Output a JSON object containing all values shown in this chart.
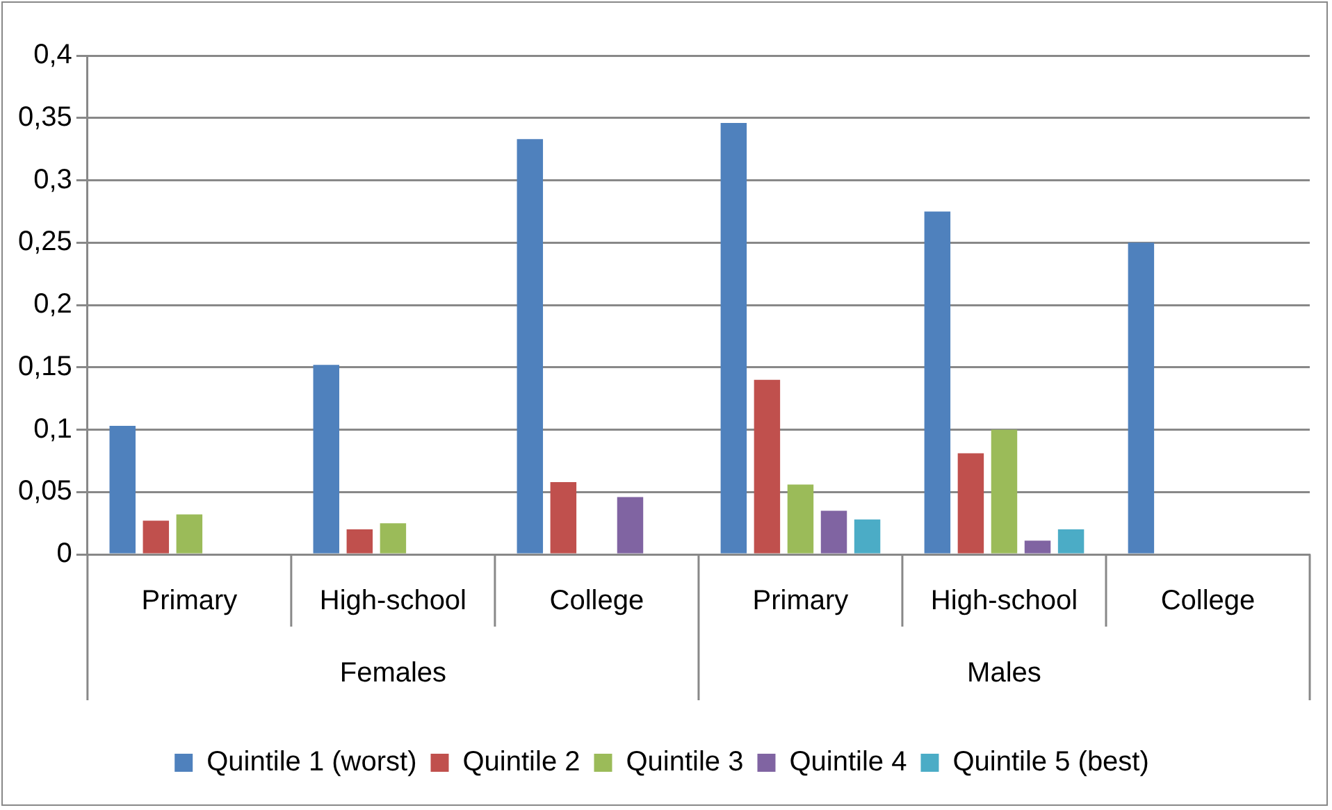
{
  "chart_data": {
    "type": "bar",
    "categories": [
      "Primary",
      "High-school",
      "College",
      "Primary",
      "High-school",
      "College"
    ],
    "series": [
      {
        "name": "Quintile 1 (worst)",
        "color": "#4f81bd",
        "values": [
          0.103,
          0.152,
          0.333,
          0.346,
          0.275,
          0.25
        ]
      },
      {
        "name": "Quintile 2",
        "color": "#c0504d",
        "values": [
          0.027,
          0.02,
          0.058,
          0.14,
          0.081,
          0
        ]
      },
      {
        "name": "Quintile 3",
        "color": "#9bbb59",
        "values": [
          0.032,
          0.025,
          0,
          0.056,
          0.1,
          0
        ]
      },
      {
        "name": "Quintile 4",
        "color": "#8064a2",
        "values": [
          0,
          0,
          0.046,
          0.035,
          0.011,
          0
        ]
      },
      {
        "name": "Quintile 5 (best)",
        "color": "#4bacc6",
        "values": [
          0,
          0,
          0,
          0.028,
          0.02,
          0
        ]
      }
    ],
    "annotations": [
      "Females",
      "Males"
    ],
    "ylim": [
      0,
      0.4
    ],
    "yticks": [
      {
        "value": 0,
        "label": "0"
      },
      {
        "value": 0.05,
        "label": "0,05"
      },
      {
        "value": 0.1,
        "label": "0,1"
      },
      {
        "value": 0.15,
        "label": "0,15"
      },
      {
        "value": 0.2,
        "label": "0,2"
      },
      {
        "value": 0.25,
        "label": "0,25"
      },
      {
        "value": 0.3,
        "label": "0,3"
      },
      {
        "value": 0.35,
        "label": "0,35"
      },
      {
        "value": 0.4,
        "label": "0,4"
      }
    ],
    "grid": "y",
    "legend": "bottom"
  }
}
